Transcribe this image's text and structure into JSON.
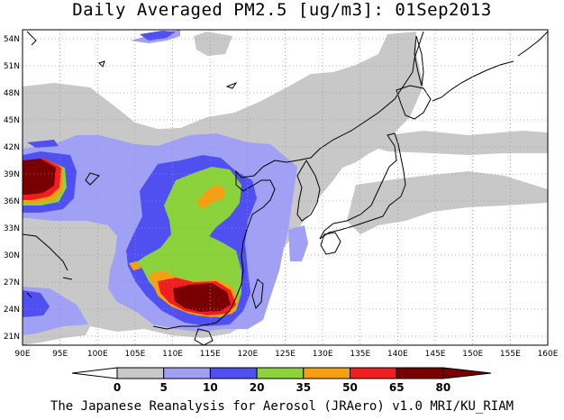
{
  "title": "Daily Averaged PM2.5 [ug/m3]: 01Sep2013",
  "credit": "The Japanese Reanalysis for Aerosol (JRAero) v1.0 MRI/KU_RIAM",
  "map": {
    "lon_range": [
      90,
      160
    ],
    "lat_range": [
      20,
      55
    ],
    "lon_ticks": [
      "90E",
      "95E",
      "100E",
      "105E",
      "110E",
      "115E",
      "120E",
      "125E",
      "130E",
      "135E",
      "140E",
      "145E",
      "150E",
      "155E",
      "160E"
    ],
    "lat_ticks": [
      "54N",
      "51N",
      "48N",
      "45N",
      "42N",
      "39N",
      "36N",
      "33N",
      "30N",
      "27N",
      "24N",
      "21N"
    ],
    "gridlines": "dotted"
  },
  "colorbar": {
    "levels": [
      "0",
      "5",
      "10",
      "20",
      "35",
      "50",
      "65",
      "80"
    ],
    "colors": [
      "#ffffff",
      "#c8c8c8",
      "#a0a0f5",
      "#5050f0",
      "#8cd23c",
      "#f5a014",
      "#f01e1e",
      "#780000"
    ]
  },
  "colors": {
    "c1": "#c8c8c8",
    "c2": "#a0a0f5",
    "c3": "#5050f0",
    "c4": "#8cd23c",
    "c5": "#f5a014",
    "c6": "#f01e1e",
    "c7": "#780000"
  }
}
